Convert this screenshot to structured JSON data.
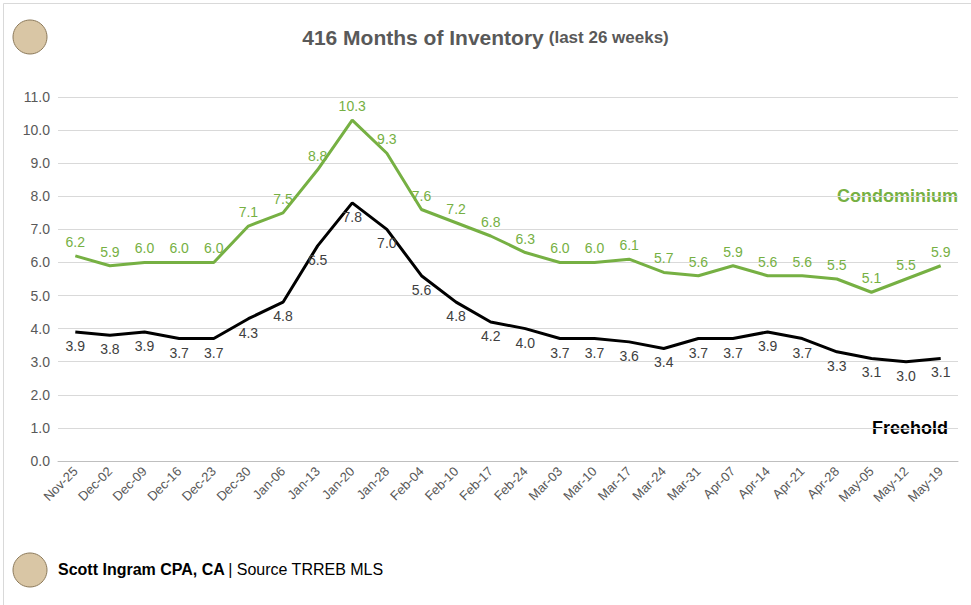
{
  "chart_data": {
    "type": "line",
    "title": "416 Months of Inventory",
    "subtitle": "(last 26 weeks)",
    "author": "Scott Ingram CPA, CA",
    "source": "| Source TRREB MLS",
    "categories": [
      "Nov-25",
      "Dec-02",
      "Dec-09",
      "Dec-16",
      "Dec-23",
      "Dec-30",
      "Jan-06",
      "Jan-13",
      "Jan-20",
      "Jan-28",
      "Feb-04",
      "Feb-10",
      "Feb-17",
      "Feb-24",
      "Mar-03",
      "Mar-10",
      "Mar-17",
      "Mar-24",
      "Mar-31",
      "Apr-07",
      "Apr-14",
      "Apr-21",
      "Apr-28",
      "May-05",
      "May-12",
      "May-19"
    ],
    "series": [
      {
        "name": "Condominium",
        "color": "#76b043",
        "values": [
          6.2,
          5.9,
          6.0,
          6.0,
          6.0,
          7.1,
          7.5,
          8.8,
          10.3,
          9.3,
          7.6,
          7.2,
          6.8,
          6.3,
          6.0,
          6.0,
          6.1,
          5.7,
          5.6,
          5.9,
          5.6,
          5.6,
          5.5,
          5.1,
          5.5,
          5.9
        ],
        "value_labels": [
          "6.2",
          "5.9",
          "6.0",
          "6.0",
          "6.0",
          "7.1",
          "7.5",
          "8.8",
          "10.3",
          "9.3",
          "7.6",
          "7.2",
          "6.8",
          "6.3",
          "6.0",
          "6.0",
          "6.1",
          "5.7",
          "5.6",
          "5.9",
          "5.6",
          "5.6",
          "5.5",
          "5.1",
          "5.5",
          "5.9"
        ]
      },
      {
        "name": "Freehold",
        "color": "#000000",
        "values": [
          3.9,
          3.8,
          3.9,
          3.7,
          3.7,
          4.3,
          4.8,
          6.5,
          7.8,
          7.0,
          5.6,
          4.8,
          4.2,
          4.0,
          3.7,
          3.7,
          3.6,
          3.4,
          3.7,
          3.7,
          3.9,
          3.7,
          3.3,
          3.1,
          3.0,
          3.1
        ],
        "value_labels": [
          "3.9",
          "3.8",
          "3.9",
          "3.7",
          "3.7",
          "4.3",
          "4.8",
          "6.5",
          "7.8",
          "7.0",
          "5.6",
          "4.8",
          "4.2",
          "4.0",
          "3.7",
          "3.7",
          "3.6",
          "3.4",
          "3.7",
          "3.7",
          "3.9",
          "3.7",
          "3.3",
          "3.1",
          "3.0",
          "3.1"
        ]
      }
    ],
    "ylim": [
      0,
      11
    ],
    "yticks": [
      {
        "value": 0,
        "label": "0.0"
      },
      {
        "value": 1,
        "label": "1.0"
      },
      {
        "value": 2,
        "label": "2.0"
      },
      {
        "value": 3,
        "label": "3.0"
      },
      {
        "value": 4,
        "label": "4.0"
      },
      {
        "value": 5,
        "label": "5.0"
      },
      {
        "value": 6,
        "label": "6.0"
      },
      {
        "value": 7,
        "label": "7.0"
      },
      {
        "value": 8,
        "label": "8.0"
      },
      {
        "value": 9,
        "label": "9.0"
      },
      {
        "value": 10,
        "label": "10.0"
      },
      {
        "value": 11,
        "label": "11.0"
      }
    ],
    "grid": true,
    "data_labels": true
  }
}
